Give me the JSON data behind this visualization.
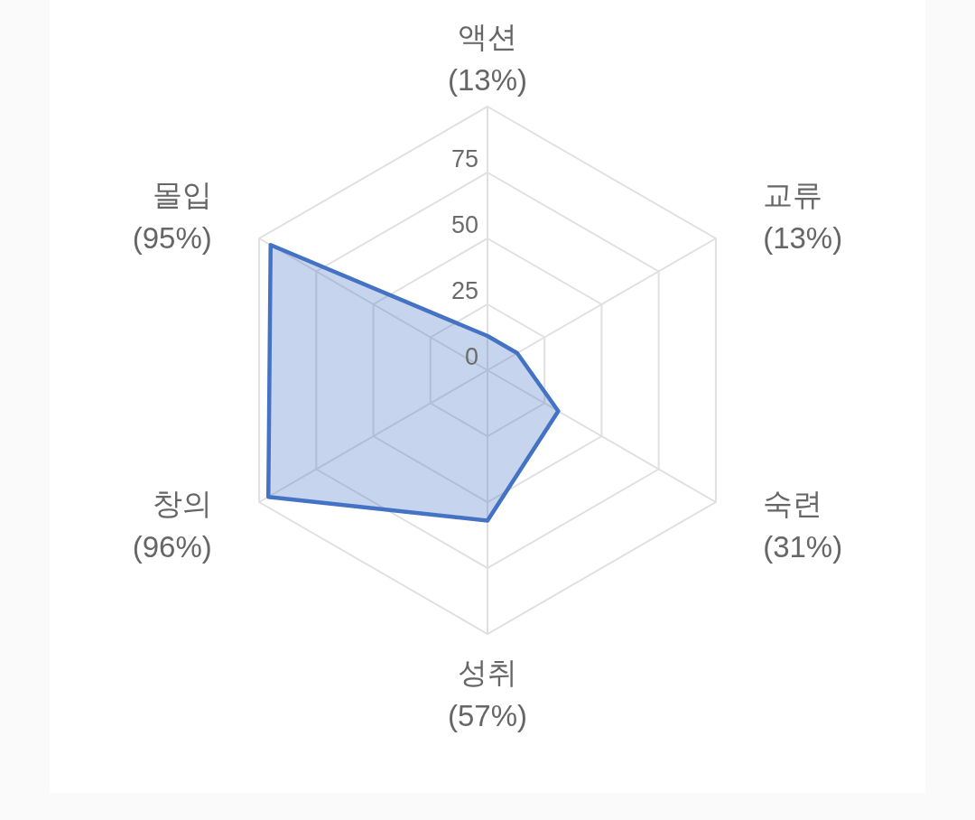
{
  "chart_data": {
    "type": "radar",
    "categories": [
      "액션\n(13%)",
      "교류\n(13%)",
      "숙련\n(31%)",
      "성취\n(57%)",
      "창의\n(96%)",
      "몰입\n(95%)"
    ],
    "series": [
      {
        "color": "#4472c4",
        "values": [
          13,
          13,
          31,
          57,
          96,
          95
        ]
      }
    ],
    "ylim": [
      0,
      100
    ],
    "yticks": [
      0,
      25,
      50,
      75
    ],
    "grid": true
  }
}
